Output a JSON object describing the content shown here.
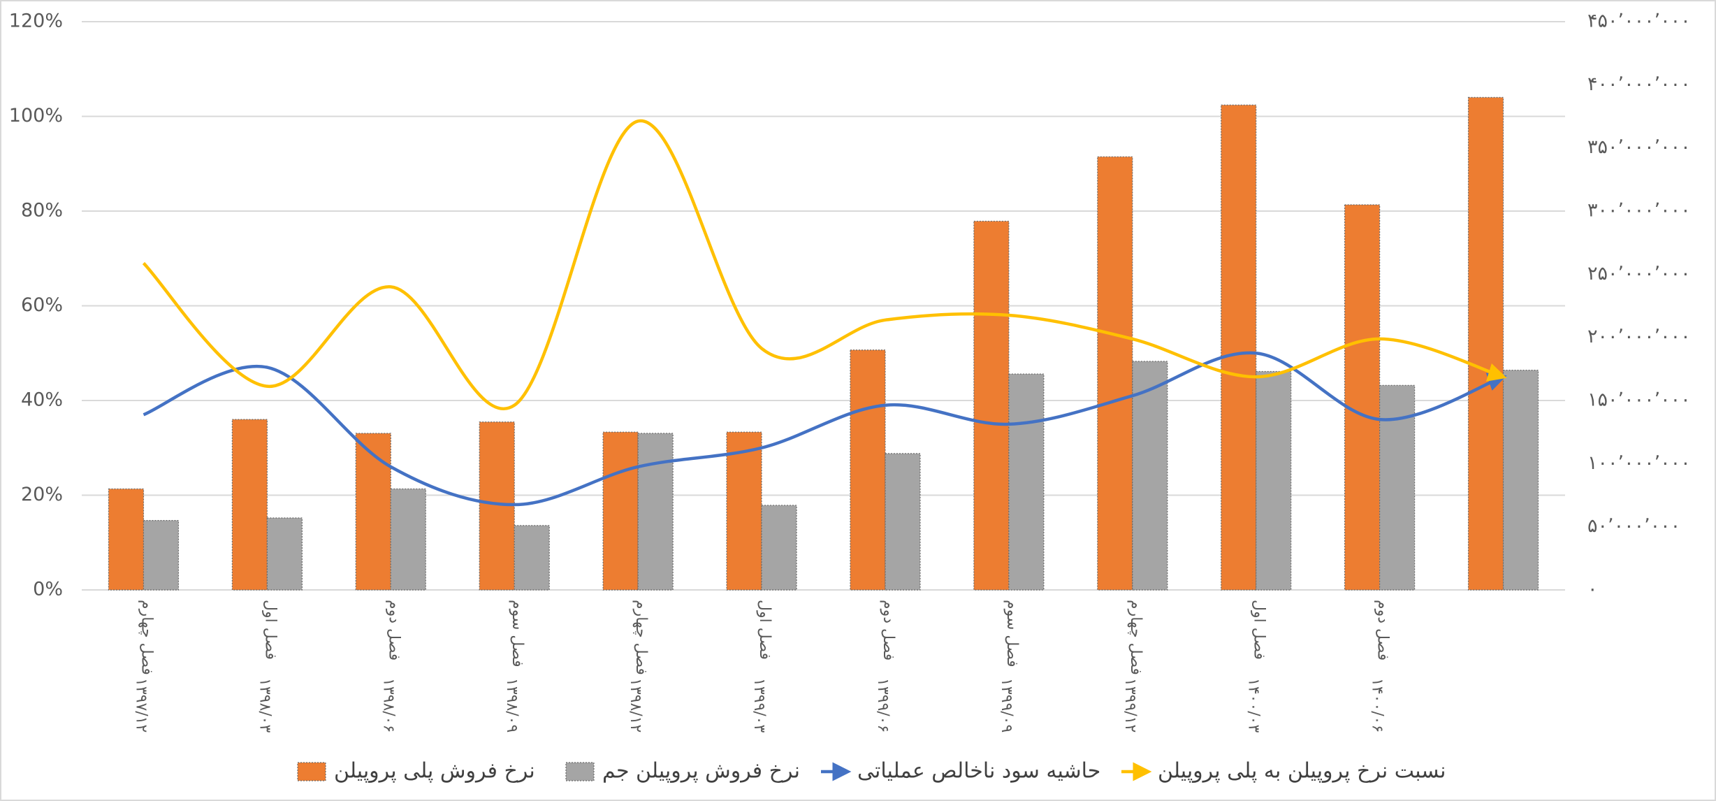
{
  "chart_data": {
    "type": "bar-line",
    "categories": [
      [
        "فصل چهارم",
        "۱۳۹۷/۱۲"
      ],
      [
        "فصل اول",
        "۱۳۹۸/۰۳"
      ],
      [
        "فصل دوم",
        "۱۳۹۸/۰۶"
      ],
      [
        "فصل سوم",
        "۱۳۹۸/۰۹"
      ],
      [
        "فصل چهارم",
        "۱۳۹۸/۱۲"
      ],
      [
        "فصل اول",
        "۱۳۹۹/۰۳"
      ],
      [
        "فصل دوم",
        "۱۳۹۹/۰۶"
      ],
      [
        "فصل سوم",
        "۱۳۹۹/۰۹"
      ],
      [
        "فصل چهارم",
        "۱۳۹۹/۱۲"
      ],
      [
        "فصل اول",
        "۱۴۰۰/۰۳"
      ],
      [
        "فصل دوم",
        "۱۴۰۰/۰۶"
      ],
      null
    ],
    "series": [
      {
        "name": "نرخ فروش پلی پروپیلن",
        "type": "bar",
        "axis": "y2",
        "color": "#ed7d31",
        "values": [
          80000000,
          135000000,
          124000000,
          133000000,
          125000000,
          125000000,
          190000000,
          292000000,
          343000000,
          384000000,
          305000000,
          390000000
        ]
      },
      {
        "name": "نرخ فروش پروپیلن جم",
        "type": "bar",
        "axis": "y2",
        "color": "#a5a5a5",
        "values": [
          55000000,
          57000000,
          80000000,
          51000000,
          124000000,
          67000000,
          108000000,
          171000000,
          181000000,
          173000000,
          162000000,
          174000000
        ]
      },
      {
        "name": "حاشیه سود ناخالص عملیاتی",
        "type": "line",
        "color": "#4472c4",
        "values": [
          37,
          47,
          26,
          18,
          26,
          30,
          39,
          35,
          41,
          50,
          36,
          45
        ]
      },
      {
        "name": "نسبت نرخ پروپیلن به پلی پروپیلن",
        "type": "line",
        "color": "#ffc000",
        "values": [
          69,
          43,
          64,
          39,
          99,
          51,
          57,
          58,
          53,
          45,
          53,
          45
        ]
      }
    ],
    "ylim": [
      0,
      120
    ],
    "yticks": [
      {
        "value": 0,
        "label": "0%"
      },
      {
        "value": 20,
        "label": "20%"
      },
      {
        "value": 40,
        "label": "40%"
      },
      {
        "value": 60,
        "label": "60%"
      },
      {
        "value": 80,
        "label": "80%"
      },
      {
        "value": 100,
        "label": "100%"
      },
      {
        "value": 120,
        "label": "120%"
      }
    ],
    "y2lim": [
      0,
      450000000
    ],
    "y2ticks": [
      {
        "value": 0,
        "label": "۰"
      },
      {
        "value": 50000000,
        "label": "۵۰٬۰۰۰٬۰۰۰"
      },
      {
        "value": 100000000,
        "label": "۱۰۰٬۰۰۰٬۰۰۰"
      },
      {
        "value": 150000000,
        "label": "۱۵۰٬۰۰۰٬۰۰۰"
      },
      {
        "value": 200000000,
        "label": "۲۰۰٬۰۰۰٬۰۰۰"
      },
      {
        "value": 250000000,
        "label": "۲۵۰٬۰۰۰٬۰۰۰"
      },
      {
        "value": 300000000,
        "label": "۳۰۰٬۰۰۰٬۰۰۰"
      },
      {
        "value": 350000000,
        "label": "۳۵۰٬۰۰۰٬۰۰۰"
      },
      {
        "value": 400000000,
        "label": "۴۰۰٬۰۰۰٬۰۰۰"
      },
      {
        "value": 450000000,
        "label": "۴۵۰٬۰۰۰٬۰۰۰"
      }
    ],
    "grid": true,
    "legend": "bottom"
  }
}
